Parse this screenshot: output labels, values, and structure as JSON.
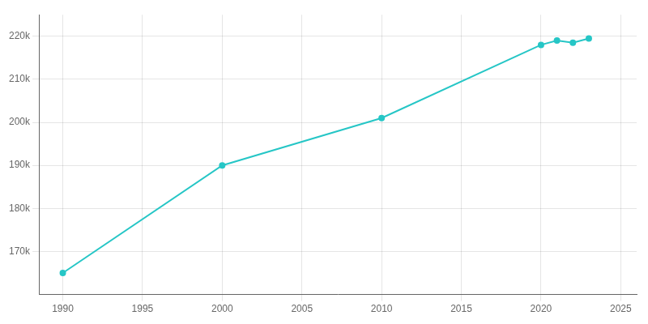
{
  "chart_data": {
    "type": "line",
    "x": [
      1990,
      2000,
      2010,
      2020,
      2021,
      2022,
      2023
    ],
    "values": [
      165000,
      190000,
      201000,
      218000,
      219000,
      218500,
      219500
    ],
    "color": "#26C6C6",
    "marker": "circle",
    "xlim": [
      1988.5,
      2026
    ],
    "ylim": [
      160000,
      225000
    ],
    "xticks": [
      1990,
      1995,
      2000,
      2005,
      2010,
      2015,
      2020,
      2025
    ],
    "yticks": [
      {
        "value": 170000,
        "label": "170k"
      },
      {
        "value": 180000,
        "label": "180k"
      },
      {
        "value": 190000,
        "label": "190k"
      },
      {
        "value": 200000,
        "label": "200k"
      },
      {
        "value": 210000,
        "label": "210k"
      },
      {
        "value": 220000,
        "label": "220k"
      }
    ],
    "grid": true
  }
}
